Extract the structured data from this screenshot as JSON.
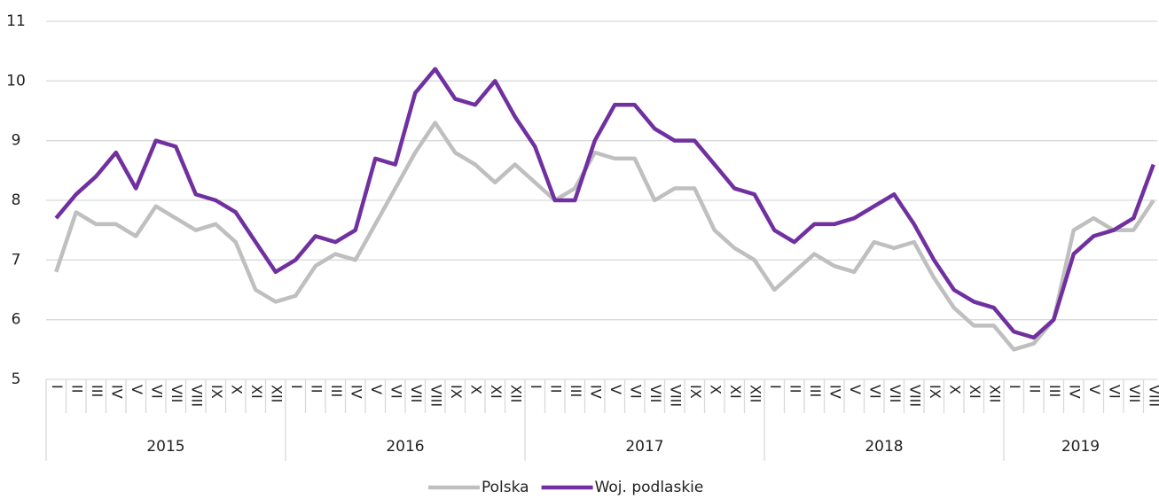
{
  "chart_data": {
    "type": "line",
    "categories": [
      "I",
      "II",
      "III",
      "IV",
      "V",
      "VI",
      "VII",
      "VIII",
      "IX",
      "X",
      "XI",
      "XII",
      "I",
      "II",
      "III",
      "IV",
      "V",
      "VI",
      "VII",
      "VIII",
      "IX",
      "X",
      "XI",
      "XII",
      "I",
      "II",
      "III",
      "IV",
      "V",
      "VI",
      "VII",
      "VIII",
      "IX",
      "X",
      "XI",
      "XII",
      "I",
      "II",
      "III",
      "IV",
      "V",
      "VI",
      "VII",
      "VIII",
      "IX",
      "X",
      "XI",
      "XII",
      "I",
      "II",
      "III",
      "IV",
      "V",
      "VI",
      "VII",
      "VIII"
    ],
    "years": [
      "2015",
      "2016",
      "2017",
      "2018",
      "2019"
    ],
    "series": [
      {
        "name": "Polska",
        "color": "#bfbfbf",
        "values": [
          6.8,
          7.8,
          7.6,
          7.6,
          7.4,
          7.9,
          7.7,
          7.5,
          7.6,
          7.3,
          6.5,
          6.3,
          6.4,
          6.9,
          7.1,
          7.0,
          7.6,
          8.2,
          8.8,
          9.3,
          8.8,
          8.6,
          8.3,
          8.6,
          8.3,
          8.0,
          8.2,
          8.8,
          8.7,
          8.7,
          8.0,
          8.2,
          8.2,
          7.5,
          7.2,
          7.0,
          6.5,
          6.8,
          7.1,
          6.9,
          6.8,
          7.3,
          7.2,
          7.3,
          6.7,
          6.2,
          5.9,
          5.9,
          5.5,
          5.6,
          6.0,
          7.5,
          7.7,
          7.5,
          7.5,
          8.0
        ]
      },
      {
        "name": "Woj. podlaskie",
        "color": "#7030a0",
        "values": [
          7.7,
          8.1,
          8.4,
          8.8,
          8.2,
          9.0,
          8.9,
          8.1,
          8.0,
          7.8,
          7.3,
          6.8,
          7.0,
          7.4,
          7.3,
          7.5,
          8.7,
          8.6,
          9.8,
          10.2,
          9.7,
          9.6,
          10.0,
          9.4,
          8.9,
          8.0,
          8.0,
          9.0,
          9.6,
          9.6,
          9.2,
          9.0,
          9.0,
          8.6,
          8.2,
          8.1,
          7.5,
          7.3,
          7.6,
          7.6,
          7.7,
          7.9,
          8.1,
          7.6,
          7.0,
          6.5,
          6.3,
          6.2,
          5.8,
          5.7,
          6.0,
          7.1,
          7.4,
          7.5,
          7.7,
          8.6
        ]
      }
    ],
    "ylim": [
      5,
      11
    ],
    "yticks": [
      5,
      6,
      7,
      8,
      9,
      10,
      11
    ],
    "grid": true,
    "legend": "bottom"
  }
}
